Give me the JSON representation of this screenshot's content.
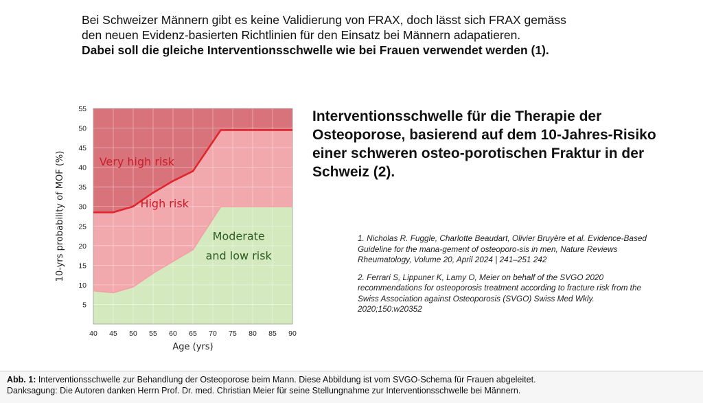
{
  "intro": {
    "line1": "Bei Schweizer Männern gibt es keine Validierung von FRAX, doch lässt sich FRAX gemäss den neuen Evidenz-basierten Richtlinien für den Einsatz bei Männern adapatieren.",
    "line2": "Dabei soll die gleiche Interventionsschwelle wie bei Frauen verwendet werden (1)."
  },
  "heading": "Interventionsschwelle für die Therapie der Osteoporose,  basierend auf dem 10-Jahres-Risiko einer schweren osteo-porotischen Fraktur in der Schweiz (2).",
  "references": [
    "1. Nicholas R. Fuggle, Charlotte Beaudart, Olivier Bruyère et al. Evidence-Based Guideline for the mana-gement of osteoporo-sis in men, Nature Reviews Rheumatology, Volume 20, April 2024 | 241–251 242",
    "2. Ferrari S, Lippuner K, Lamy O, Meier on behalf of the SVGO 2020 recommendations for osteoporosis treatment according to fracture risk from the Swiss Association against Osteoporosis (SVGO) Swiss Med Wkly. 2020;150:w20352"
  ],
  "caption": {
    "label": "Abb. 1:",
    "text": " Interventionsschwelle zur Behandlung der Osteoporose beim Mann. Diese Abbildung ist vom SVGO-Schema für Frauen abgeleitet.",
    "line2": "Danksagung: Die Autoren danken Herrn Prof. Dr. med. Christian Meier für seine Stellungnahme zur Interventionsschwelle bei Männern."
  },
  "chart_data": {
    "type": "area",
    "xlabel": "Age (yrs)",
    "ylabel": "10-yrs probability of MOF (%)",
    "xlim": [
      40,
      90
    ],
    "ylim": [
      0,
      55
    ],
    "x_ticks": [
      40,
      45,
      50,
      55,
      60,
      65,
      70,
      75,
      80,
      85,
      90
    ],
    "y_ticks": [
      5,
      10,
      15,
      20,
      25,
      30,
      35,
      40,
      45,
      50,
      55
    ],
    "grid": true,
    "series": [
      {
        "name": "Very high risk",
        "x": [
          40,
          45,
          50,
          55,
          60,
          65,
          72,
          90
        ],
        "values": [
          28.5,
          28.5,
          30,
          33.5,
          36.5,
          39,
          49.5,
          49.5
        ]
      },
      {
        "name": "High risk",
        "x": [
          40,
          45,
          50,
          55,
          60,
          65,
          72,
          90
        ],
        "values": [
          8.5,
          8,
          9.5,
          13,
          16,
          19,
          30,
          30
        ]
      }
    ],
    "zones": [
      "Very high risk",
      "High risk",
      "Moderate and low risk"
    ],
    "zone_labels": [
      "Very high risk",
      "High risk",
      "Moderate",
      "and low risk"
    ],
    "colors": {
      "very_high": "#d9737b",
      "high": "#f2a9ae",
      "moderate_low": "#d4e9be",
      "line": "#e0252d",
      "line_light": "#f3a3a8",
      "very_high_text": "#cc1c28",
      "high_text": "#cc1c28",
      "moderate_text": "#2e5e25"
    }
  }
}
